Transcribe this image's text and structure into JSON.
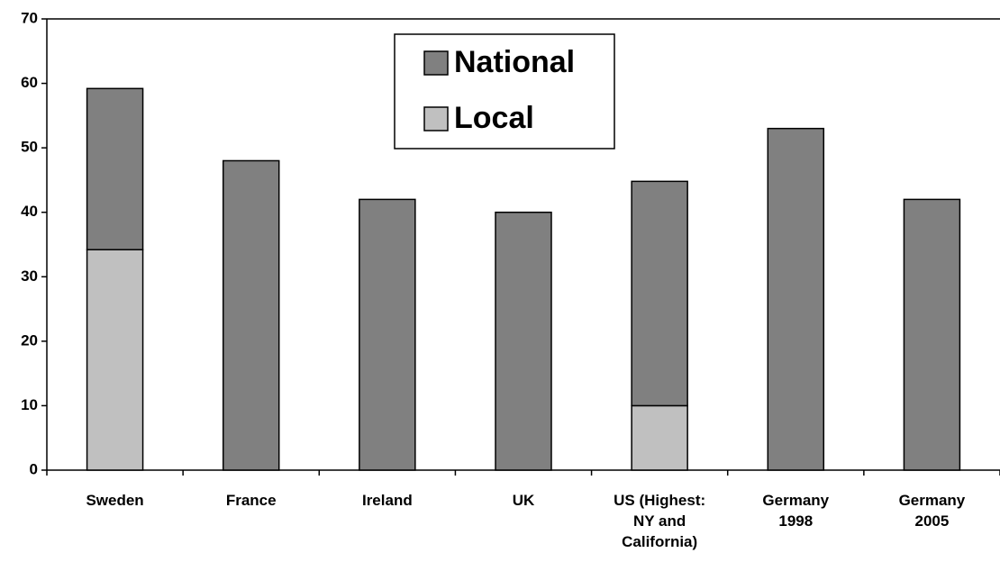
{
  "chart_data": {
    "type": "stacked_bar",
    "categories": [
      "Sweden",
      "France",
      "Ireland",
      "UK",
      "US (Highest:\nNY and\nCalifornia)",
      "Germany\n1998",
      "Germany\n2005"
    ],
    "series": [
      {
        "name": "Local",
        "color": "#c0c0c0",
        "values": [
          34.2,
          0,
          0,
          0,
          10,
          0,
          0
        ]
      },
      {
        "name": "National",
        "color": "#808080",
        "values": [
          25,
          48,
          42,
          40,
          34.8,
          53,
          42
        ]
      }
    ],
    "ylim": [
      0,
      70
    ],
    "yticks": [
      0,
      10,
      20,
      30,
      40,
      50,
      60,
      70
    ]
  }
}
